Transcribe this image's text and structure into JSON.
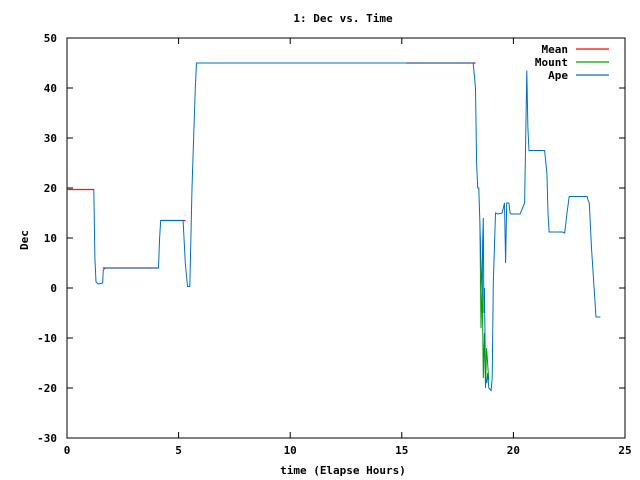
{
  "chart_data": {
    "type": "line",
    "title": "1: Dec vs. Time",
    "xlabel": "time (Elapse Hours)",
    "ylabel": "Dec",
    "xlim": [
      0,
      25
    ],
    "ylim": [
      -30,
      50
    ],
    "xticks": [
      0,
      5,
      10,
      15,
      20,
      25
    ],
    "yticks": [
      -30,
      -20,
      -10,
      0,
      10,
      20,
      30,
      40,
      50
    ],
    "legend": "top-right",
    "grid": false,
    "series": [
      {
        "name": "Mean",
        "color": "#ff0000",
        "x": [
          0.0,
          1.2,
          1.6,
          4.1,
          4.2,
          5.3,
          15.2,
          18.3
        ],
        "y": [
          19.7,
          19.7,
          4.0,
          4.0,
          13.5,
          13.5,
          45.0,
          45.0
        ],
        "segments": [
          [
            0,
            1
          ],
          [
            2,
            3
          ],
          [
            4,
            5
          ],
          [
            6,
            7
          ]
        ]
      },
      {
        "name": "Mount",
        "color": "#00a000",
        "x": [
          18.5,
          18.55,
          18.6,
          18.65,
          18.7,
          18.75,
          18.8,
          18.9
        ],
        "y": [
          13.0,
          -8.0,
          1.0,
          -18.0,
          -9.0,
          -20.0,
          -12.0,
          -18.5
        ]
      },
      {
        "name": "Ape",
        "color": "#0070c0",
        "x": [
          0.0,
          0.05,
          1.2,
          1.25,
          1.3,
          1.4,
          1.6,
          1.62,
          1.7,
          4.1,
          4.15,
          4.2,
          5.2,
          5.3,
          5.4,
          5.5,
          5.55,
          5.6,
          5.75,
          5.8,
          10.0,
          15.0,
          18.2,
          18.3,
          18.35,
          18.4,
          18.45,
          18.5,
          18.55,
          18.6,
          18.62,
          18.65,
          18.68,
          18.7,
          18.75,
          18.8,
          18.85,
          18.9,
          19.0,
          19.05,
          19.1,
          19.2,
          19.3,
          19.5,
          19.6,
          19.65,
          19.7,
          19.8,
          19.85,
          19.9,
          20.0,
          20.3,
          20.5,
          20.55,
          20.6,
          20.65,
          20.7,
          20.75,
          20.8,
          21.4,
          21.5,
          21.55,
          21.6,
          22.1,
          22.2,
          22.3,
          22.4,
          22.5,
          23.3,
          23.35,
          23.4,
          23.5,
          23.7,
          23.9
        ],
        "y": [
          19.7,
          19.7,
          19.7,
          6.0,
          1.2,
          0.8,
          1.0,
          3.5,
          4.0,
          4.0,
          10.0,
          13.5,
          13.5,
          5.0,
          0.3,
          0.3,
          10.0,
          20.0,
          40.0,
          45.0,
          45.0,
          45.0,
          45.0,
          40.0,
          25.0,
          20.0,
          20.0,
          13.0,
          5.0,
          -2.0,
          9.0,
          14.0,
          -5.0,
          0.0,
          -18.0,
          -19.0,
          -17.0,
          -20.0,
          -20.5,
          -18.0,
          1.0,
          15.0,
          14.8,
          15.0,
          17.0,
          5.0,
          17.0,
          17.0,
          15.0,
          14.8,
          14.8,
          14.8,
          17.0,
          30.0,
          43.5,
          32.0,
          27.5,
          27.5,
          27.5,
          27.5,
          23.0,
          15.0,
          11.2,
          11.2,
          11.2,
          11.0,
          15.0,
          18.3,
          18.3,
          17.5,
          17.0,
          8.0,
          -5.8,
          -5.8
        ]
      }
    ]
  }
}
